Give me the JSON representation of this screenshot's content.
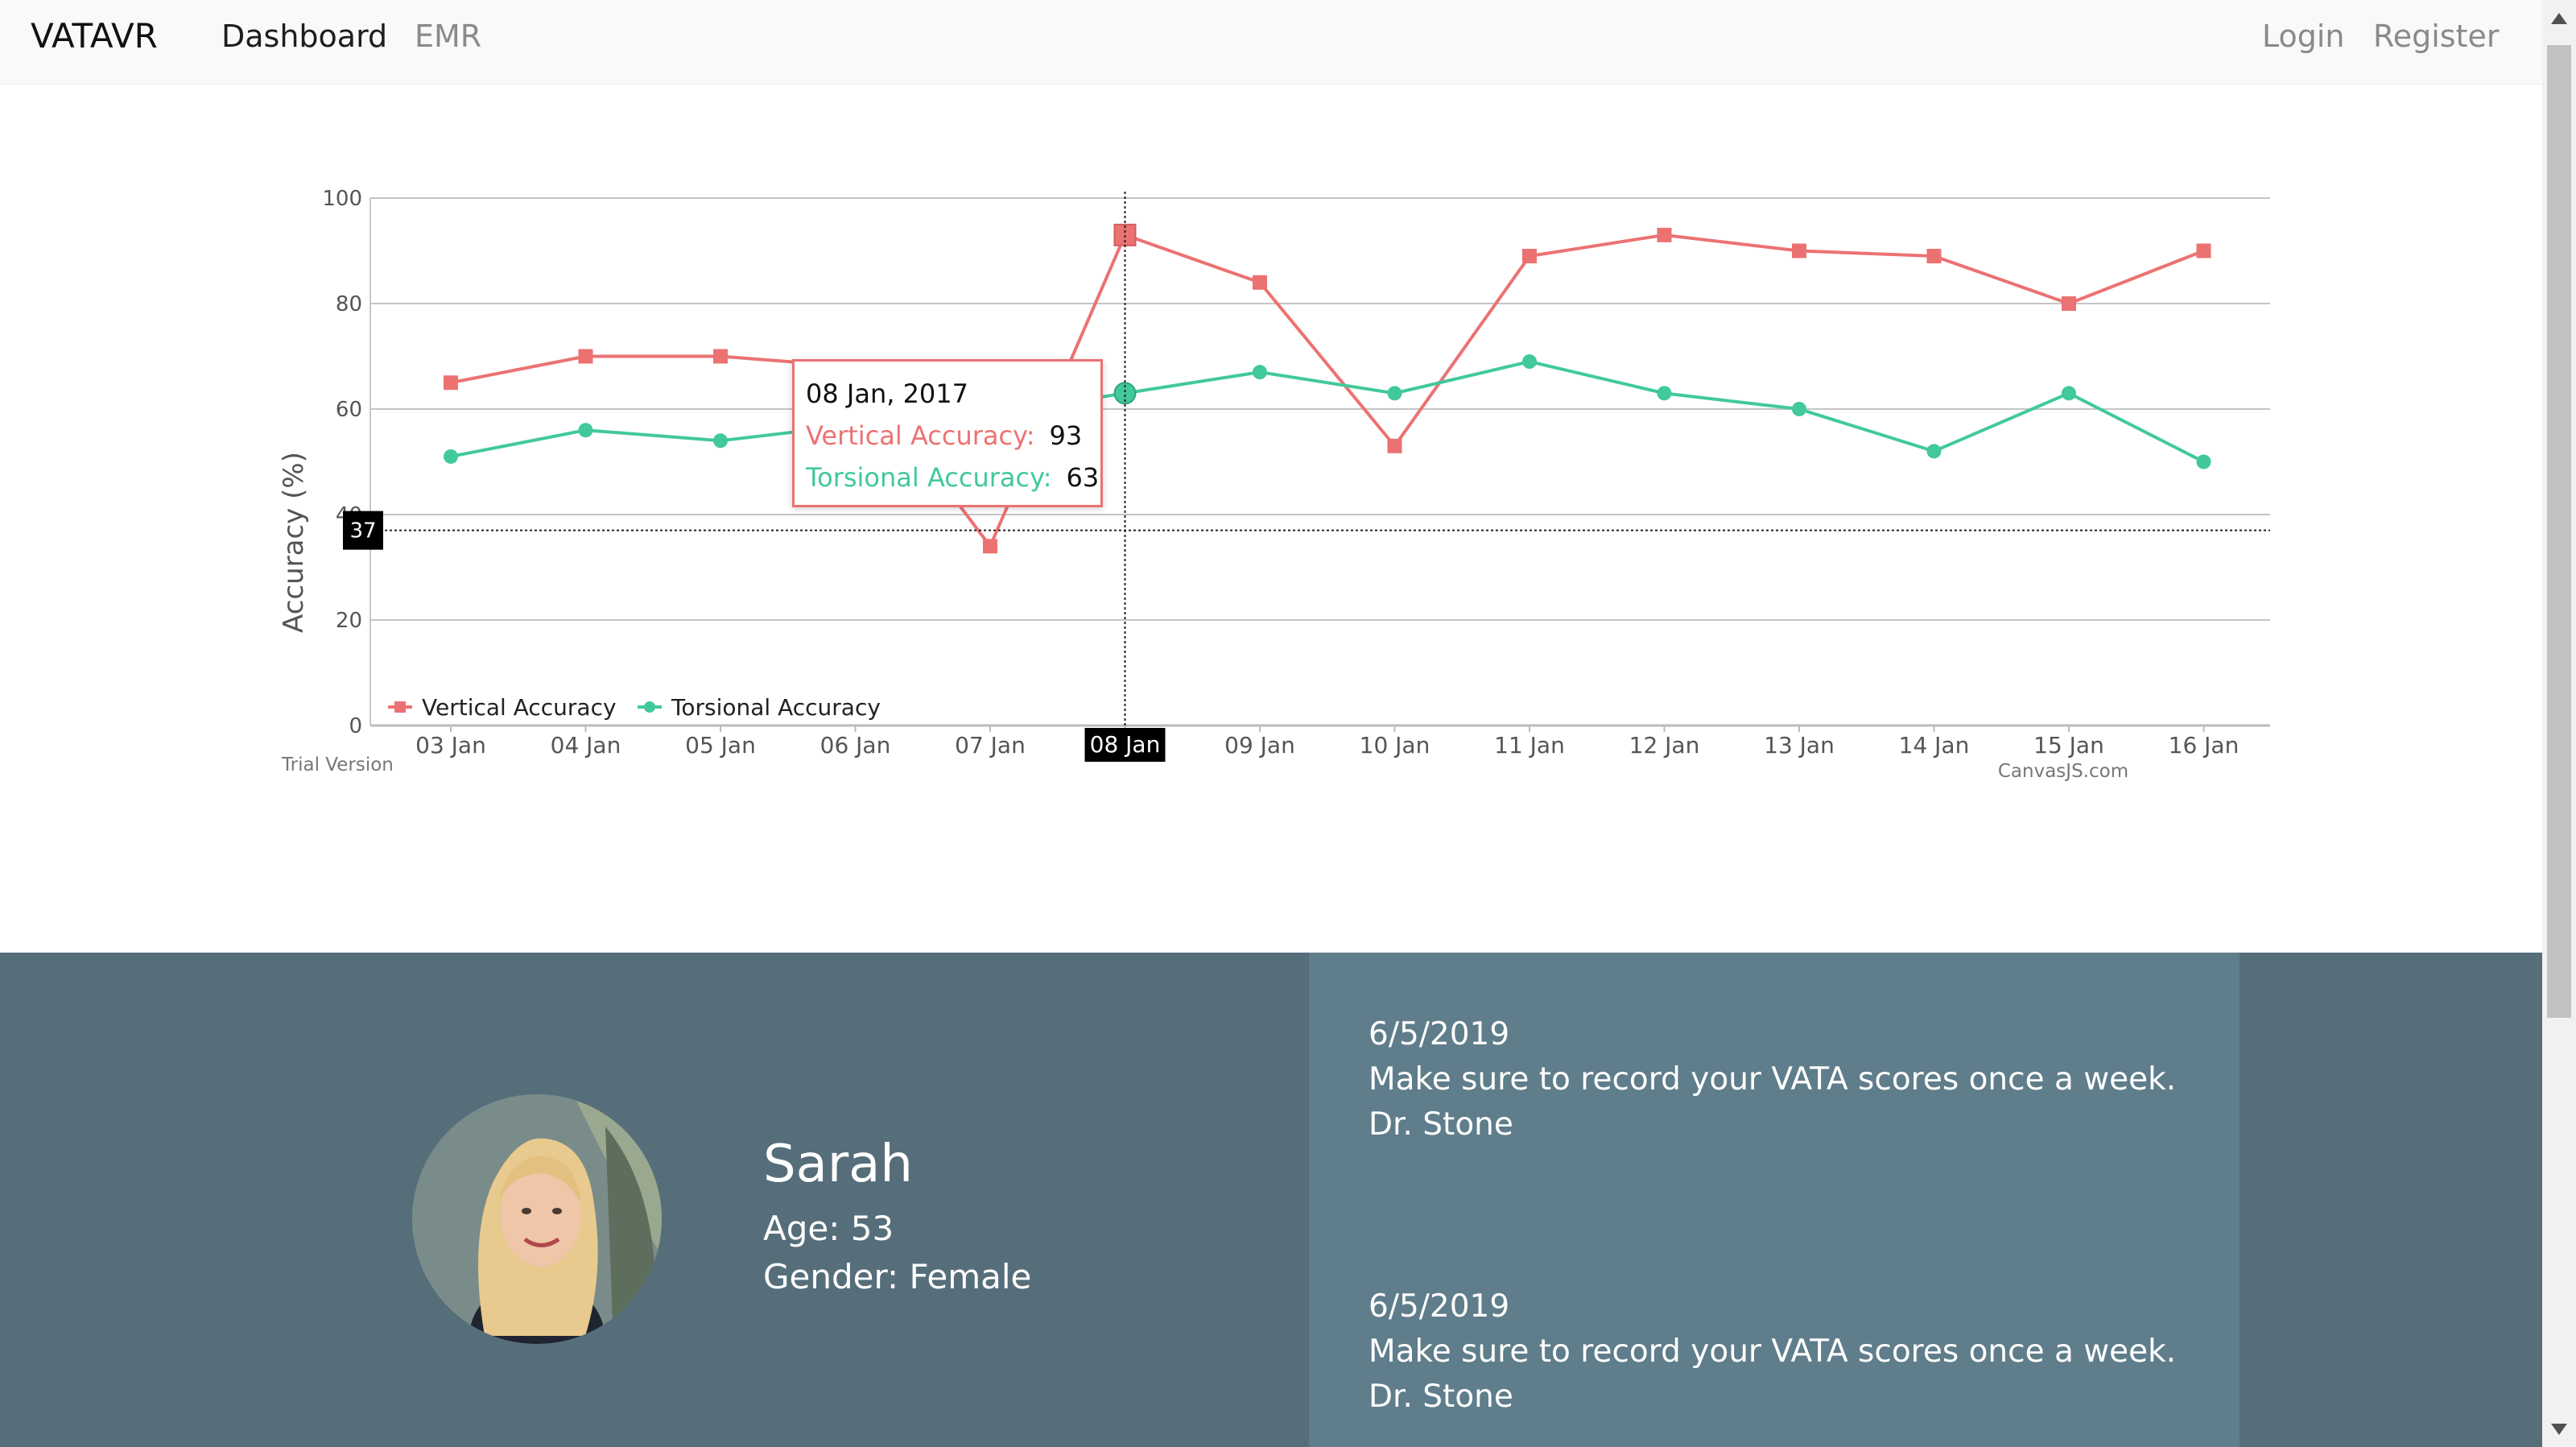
{
  "navbar": {
    "brand": "VATAVR",
    "links": [
      "Dashboard",
      "EMR"
    ],
    "right_links": [
      "Login",
      "Register"
    ]
  },
  "chart_data": {
    "type": "line",
    "ylabel": "Accuracy (%)",
    "ylim": [
      0,
      100
    ],
    "y_ticks": [
      0,
      20,
      40,
      60,
      80,
      100
    ],
    "categories": [
      "03 Jan",
      "04 Jan",
      "05 Jan",
      "06 Jan",
      "07 Jan",
      "08 Jan",
      "09 Jan",
      "10 Jan",
      "11 Jan",
      "12 Jan",
      "13 Jan",
      "14 Jan",
      "15 Jan",
      "16 Jan"
    ],
    "series": [
      {
        "name": "Vertical Accuracy",
        "color": "#ec7272",
        "marker": "square",
        "values": [
          65,
          70,
          70,
          68,
          34,
          93,
          84,
          53,
          89,
          93,
          90,
          89,
          80,
          90
        ]
      },
      {
        "name": "Torsional Accuracy",
        "color": "#41c99a",
        "marker": "circle",
        "values": [
          51,
          56,
          54,
          57,
          59,
          63,
          67,
          63,
          69,
          63,
          60,
          52,
          63,
          50
        ]
      }
    ],
    "grid": true,
    "legend": "bottom-left",
    "crosshair": {
      "x_label": "08 Jan",
      "y_label": "37",
      "y_value": 37
    },
    "tooltip": {
      "title": "08 Jan, 2017",
      "rows": [
        {
          "label": "Vertical Accuracy:",
          "value": "93"
        },
        {
          "label": "Torsional Accuracy:",
          "value": "63"
        }
      ]
    },
    "watermark_left": "Trial Version",
    "watermark_right": "CanvasJS.com"
  },
  "profile": {
    "name": "Sarah",
    "age": "Age: 53",
    "gender": "Gender: Female"
  },
  "notes": [
    {
      "date": "6/5/2019",
      "text": "Make sure to record your VATA scores once a week.",
      "author": "Dr. Stone"
    },
    {
      "date": "6/5/2019",
      "text": "Make sure to record your VATA scores once a week.",
      "author": "Dr. Stone"
    }
  ]
}
